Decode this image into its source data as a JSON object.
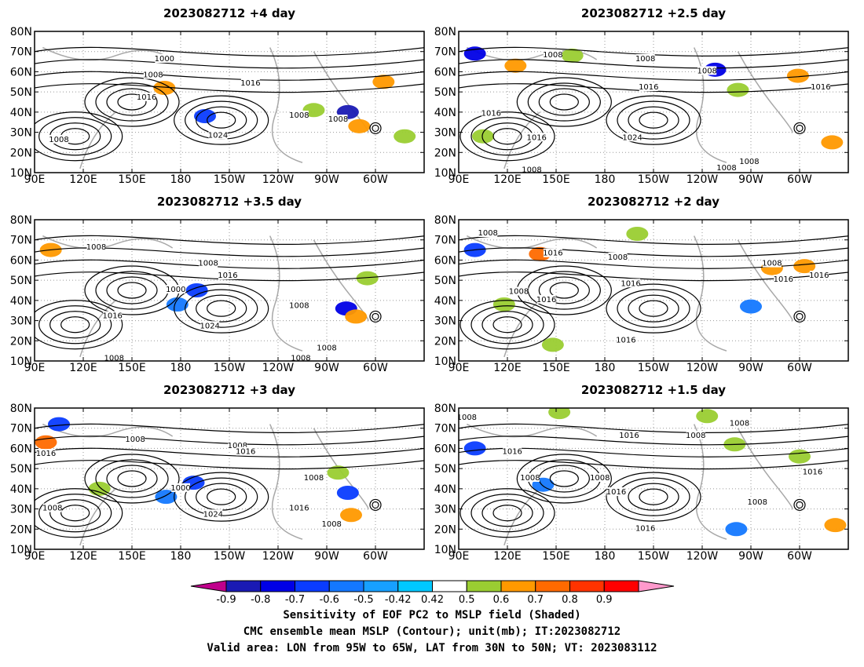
{
  "panels": [
    {
      "title": "2023082712  +4 day",
      "shading": [
        {
          "lon": 170,
          "lat": 52,
          "v": 0.6
        },
        {
          "lon": 195,
          "lat": 38,
          "v": -0.62
        },
        {
          "lon": 283,
          "lat": 40,
          "v": -0.8
        },
        {
          "lon": 290,
          "lat": 33,
          "v": 0.65
        },
        {
          "lon": 262,
          "lat": 41,
          "v": 0.5
        },
        {
          "lon": 305,
          "lat": 55,
          "v": 0.65
        },
        {
          "lon": 318,
          "lat": 28,
          "v": 0.5
        }
      ],
      "contours": [
        {
          "lon": 170,
          "lat": 66,
          "text": "1000"
        },
        {
          "lon": 163,
          "lat": 58,
          "text": "1008"
        },
        {
          "lon": 159,
          "lat": 47,
          "text": "1016"
        },
        {
          "lon": 223,
          "lat": 54,
          "text": "1016"
        },
        {
          "lon": 203,
          "lat": 28,
          "text": "1024"
        },
        {
          "lon": 253,
          "lat": 38,
          "text": "1008"
        },
        {
          "lon": 277,
          "lat": 36,
          "text": "1008"
        },
        {
          "lon": 105,
          "lat": 26,
          "text": "1008"
        }
      ]
    },
    {
      "title": "2023082712  +2.5 day",
      "shading": [
        {
          "lon": 100,
          "lat": 69,
          "v": -0.75
        },
        {
          "lon": 125,
          "lat": 63,
          "v": 0.65
        },
        {
          "lon": 160,
          "lat": 68,
          "v": 0.55
        },
        {
          "lon": 248,
          "lat": 61,
          "v": -0.7
        },
        {
          "lon": 262,
          "lat": 51,
          "v": 0.5
        },
        {
          "lon": 299,
          "lat": 58,
          "v": 0.65
        },
        {
          "lon": 320,
          "lat": 25,
          "v": 0.6
        },
        {
          "lon": 105,
          "lat": 28,
          "v": 0.5
        }
      ],
      "contours": [
        {
          "lon": 148,
          "lat": 68,
          "text": "1008"
        },
        {
          "lon": 205,
          "lat": 66,
          "text": "1008"
        },
        {
          "lon": 243,
          "lat": 60,
          "text": "1008"
        },
        {
          "lon": 207,
          "lat": 52,
          "text": "1016"
        },
        {
          "lon": 110,
          "lat": 39,
          "text": "1016"
        },
        {
          "lon": 138,
          "lat": 27,
          "text": "1016"
        },
        {
          "lon": 197,
          "lat": 27,
          "text": "1024"
        },
        {
          "lon": 313,
          "lat": 52,
          "text": "1016"
        },
        {
          "lon": 269,
          "lat": 15,
          "text": "1008"
        },
        {
          "lon": 135,
          "lat": 11,
          "text": "1008"
        },
        {
          "lon": 255,
          "lat": 12,
          "text": "1008"
        }
      ]
    },
    {
      "title": "2023082712  +3.5 day",
      "shading": [
        {
          "lon": 100,
          "lat": 65,
          "v": 0.65
        },
        {
          "lon": 190,
          "lat": 45,
          "v": -0.6
        },
        {
          "lon": 282,
          "lat": 36,
          "v": -0.75
        },
        {
          "lon": 288,
          "lat": 32,
          "v": 0.65
        },
        {
          "lon": 295,
          "lat": 51,
          "v": 0.5
        },
        {
          "lon": 178,
          "lat": 38,
          "v": -0.55
        }
      ],
      "contours": [
        {
          "lon": 128,
          "lat": 66,
          "text": "1008"
        },
        {
          "lon": 197,
          "lat": 58,
          "text": "1008"
        },
        {
          "lon": 209,
          "lat": 52,
          "text": "1016"
        },
        {
          "lon": 177,
          "lat": 45,
          "text": "1000"
        },
        {
          "lon": 138,
          "lat": 32,
          "text": "1016"
        },
        {
          "lon": 198,
          "lat": 27,
          "text": "1024"
        },
        {
          "lon": 253,
          "lat": 37,
          "text": "1008"
        },
        {
          "lon": 139,
          "lat": 11,
          "text": "1008"
        },
        {
          "lon": 270,
          "lat": 16,
          "text": "1008"
        },
        {
          "lon": 254,
          "lat": 11,
          "text": "1008"
        }
      ]
    },
    {
      "title": "2023082712  +2 day",
      "shading": [
        {
          "lon": 140,
          "lat": 63,
          "v": 0.7
        },
        {
          "lon": 100,
          "lat": 65,
          "v": -0.6
        },
        {
          "lon": 200,
          "lat": 73,
          "v": 0.5
        },
        {
          "lon": 283,
          "lat": 56,
          "v": 0.65
        },
        {
          "lon": 303,
          "lat": 57,
          "v": 0.65
        },
        {
          "lon": 118,
          "lat": 38,
          "v": 0.5
        },
        {
          "lon": 148,
          "lat": 18,
          "v": 0.55
        },
        {
          "lon": 270,
          "lat": 37,
          "v": -0.55
        }
      ],
      "contours": [
        {
          "lon": 108,
          "lat": 73,
          "text": "1008"
        },
        {
          "lon": 148,
          "lat": 63,
          "text": "1016"
        },
        {
          "lon": 188,
          "lat": 61,
          "text": "1008"
        },
        {
          "lon": 127,
          "lat": 44,
          "text": "1008"
        },
        {
          "lon": 144,
          "lat": 40,
          "text": "1016"
        },
        {
          "lon": 196,
          "lat": 48,
          "text": "1016"
        },
        {
          "lon": 193,
          "lat": 20,
          "text": "1016"
        },
        {
          "lon": 283,
          "lat": 58,
          "text": "1008"
        },
        {
          "lon": 290,
          "lat": 50,
          "text": "1016"
        },
        {
          "lon": 312,
          "lat": 52,
          "text": "1016"
        }
      ]
    },
    {
      "title": "2023082712  +3 day",
      "shading": [
        {
          "lon": 105,
          "lat": 72,
          "v": -0.6
        },
        {
          "lon": 97,
          "lat": 63,
          "v": 0.7
        },
        {
          "lon": 188,
          "lat": 43,
          "v": -0.62
        },
        {
          "lon": 171,
          "lat": 36,
          "v": -0.55
        },
        {
          "lon": 283,
          "lat": 38,
          "v": -0.62
        },
        {
          "lon": 277,
          "lat": 48,
          "v": 0.55
        },
        {
          "lon": 130,
          "lat": 40,
          "v": 0.5
        },
        {
          "lon": 285,
          "lat": 27,
          "v": 0.6
        }
      ],
      "contours": [
        {
          "lon": 152,
          "lat": 64,
          "text": "1008"
        },
        {
          "lon": 97,
          "lat": 57,
          "text": "1016"
        },
        {
          "lon": 180,
          "lat": 40,
          "text": "1000"
        },
        {
          "lon": 215,
          "lat": 61,
          "text": "1008"
        },
        {
          "lon": 220,
          "lat": 58,
          "text": "1016"
        },
        {
          "lon": 200,
          "lat": 27,
          "text": "1024"
        },
        {
          "lon": 262,
          "lat": 45,
          "text": "1008"
        },
        {
          "lon": 101,
          "lat": 30,
          "text": "1008"
        },
        {
          "lon": 253,
          "lat": 30,
          "text": "1016"
        },
        {
          "lon": 273,
          "lat": 22,
          "text": "1008"
        }
      ]
    },
    {
      "title": "2023082712  +1.5 day",
      "shading": [
        {
          "lon": 100,
          "lat": 60,
          "v": -0.6
        },
        {
          "lon": 152,
          "lat": 78,
          "v": 0.55
        },
        {
          "lon": 243,
          "lat": 76,
          "v": 0.5
        },
        {
          "lon": 261,
          "lat": 20,
          "v": -0.55
        },
        {
          "lon": 322,
          "lat": 22,
          "v": 0.65
        },
        {
          "lon": 300,
          "lat": 56,
          "v": 0.55
        },
        {
          "lon": 260,
          "lat": 62,
          "v": 0.5
        },
        {
          "lon": 142,
          "lat": 42,
          "v": -0.55
        }
      ],
      "contours": [
        {
          "lon": 95,
          "lat": 75,
          "text": "1008"
        },
        {
          "lon": 195,
          "lat": 66,
          "text": "1016"
        },
        {
          "lon": 236,
          "lat": 66,
          "text": "1008"
        },
        {
          "lon": 263,
          "lat": 72,
          "text": "1008"
        },
        {
          "lon": 123,
          "lat": 58,
          "text": "1016"
        },
        {
          "lon": 134,
          "lat": 45,
          "text": "1008"
        },
        {
          "lon": 177,
          "lat": 45,
          "text": "1008"
        },
        {
          "lon": 187,
          "lat": 38,
          "text": "1016"
        },
        {
          "lon": 205,
          "lat": 20,
          "text": "1016"
        },
        {
          "lon": 274,
          "lat": 33,
          "text": "1008"
        },
        {
          "lon": 308,
          "lat": 48,
          "text": "1016"
        }
      ]
    }
  ],
  "axes": {
    "lon_min": 90,
    "lon_max": 330,
    "lat_min": 10,
    "lat_max": 80,
    "lon_ticks": [
      {
        "v": 90,
        "label": "90E"
      },
      {
        "v": 120,
        "label": "120E"
      },
      {
        "v": 150,
        "label": "150E"
      },
      {
        "v": 180,
        "label": "180"
      },
      {
        "v": 210,
        "label": "150W"
      },
      {
        "v": 240,
        "label": "120W"
      },
      {
        "v": 270,
        "label": "90W"
      },
      {
        "v": 300,
        "label": "60W"
      }
    ],
    "lat_ticks": [
      {
        "v": 10,
        "label": "10N"
      },
      {
        "v": 20,
        "label": "20N"
      },
      {
        "v": 30,
        "label": "30N"
      },
      {
        "v": 40,
        "label": "40N"
      },
      {
        "v": 50,
        "label": "50N"
      },
      {
        "v": 60,
        "label": "60N"
      },
      {
        "v": 70,
        "label": "70N"
      },
      {
        "v": 80,
        "label": "80N"
      }
    ]
  },
  "colorbar": {
    "labels": [
      "-0.9",
      "-0.8",
      "-0.7",
      "-0.6",
      "-0.5",
      "-0.42",
      "0.42",
      "0.5",
      "0.6",
      "0.7",
      "0.8",
      "0.9"
    ],
    "colors": [
      "#c0008c",
      "#1a1ab4",
      "#0000e6",
      "#0a3cff",
      "#1478ff",
      "#17a0ff",
      "#00c8ff",
      "#ffffff",
      "#9acd32",
      "#ff9900",
      "#ff6a00",
      "#ff3300",
      "#ff0000",
      "#ff99cc"
    ]
  },
  "caption": {
    "line1": "Sensitivity of EOF PC2 to MSLP field (Shaded)",
    "line2": "CMC ensemble mean MSLP (Contour); unit(mb); IT:2023082712",
    "line3": "Valid area: LON from 95W to 65W, LAT from 30N to 50N; VT: 2023083112"
  }
}
